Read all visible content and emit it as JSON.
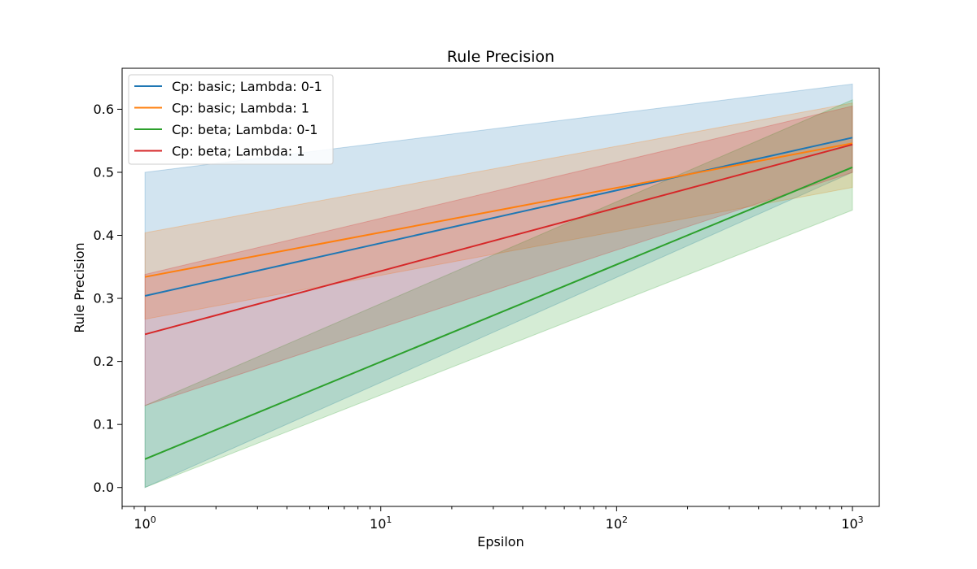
{
  "chart_data": {
    "type": "line",
    "title": "Rule Precision",
    "xlabel": "Epsilon",
    "ylabel": "Rule Precision",
    "x_scale": "log",
    "xlim": [
      0.8,
      1300
    ],
    "ylim": [
      -0.03,
      0.665
    ],
    "x": [
      1,
      1000
    ],
    "x_ticks": [
      {
        "value": 1,
        "base": "10",
        "exp": "0"
      },
      {
        "value": 10,
        "base": "10",
        "exp": "1"
      },
      {
        "value": 100,
        "base": "10",
        "exp": "2"
      },
      {
        "value": 1000,
        "base": "10",
        "exp": "3"
      }
    ],
    "y_ticks": [
      "0.0",
      "0.1",
      "0.2",
      "0.3",
      "0.4",
      "0.5",
      "0.6"
    ],
    "grid": false,
    "legend_position": "top-left",
    "series": [
      {
        "name": "Cp: basic; Lambda: 0-1",
        "color": "#1f77b4",
        "values": [
          0.304,
          0.555
        ],
        "band_lower": [
          0.0,
          0.5
        ],
        "band_upper": [
          0.5,
          0.64
        ]
      },
      {
        "name": "Cp: basic; Lambda: 1",
        "color": "#ff7f0e",
        "values": [
          0.334,
          0.546
        ],
        "band_lower": [
          0.267,
          0.476
        ],
        "band_upper": [
          0.404,
          0.61
        ]
      },
      {
        "name": "Cp: beta; Lambda: 0-1",
        "color": "#2ca02c",
        "values": [
          0.045,
          0.508
        ],
        "band_lower": [
          0.0,
          0.44
        ],
        "band_upper": [
          0.13,
          0.615
        ]
      },
      {
        "name": "Cp: beta; Lambda: 1",
        "color": "#d62728",
        "values": [
          0.243,
          0.544
        ],
        "band_lower": [
          0.13,
          0.5
        ],
        "band_upper": [
          0.338,
          0.605
        ]
      }
    ]
  }
}
